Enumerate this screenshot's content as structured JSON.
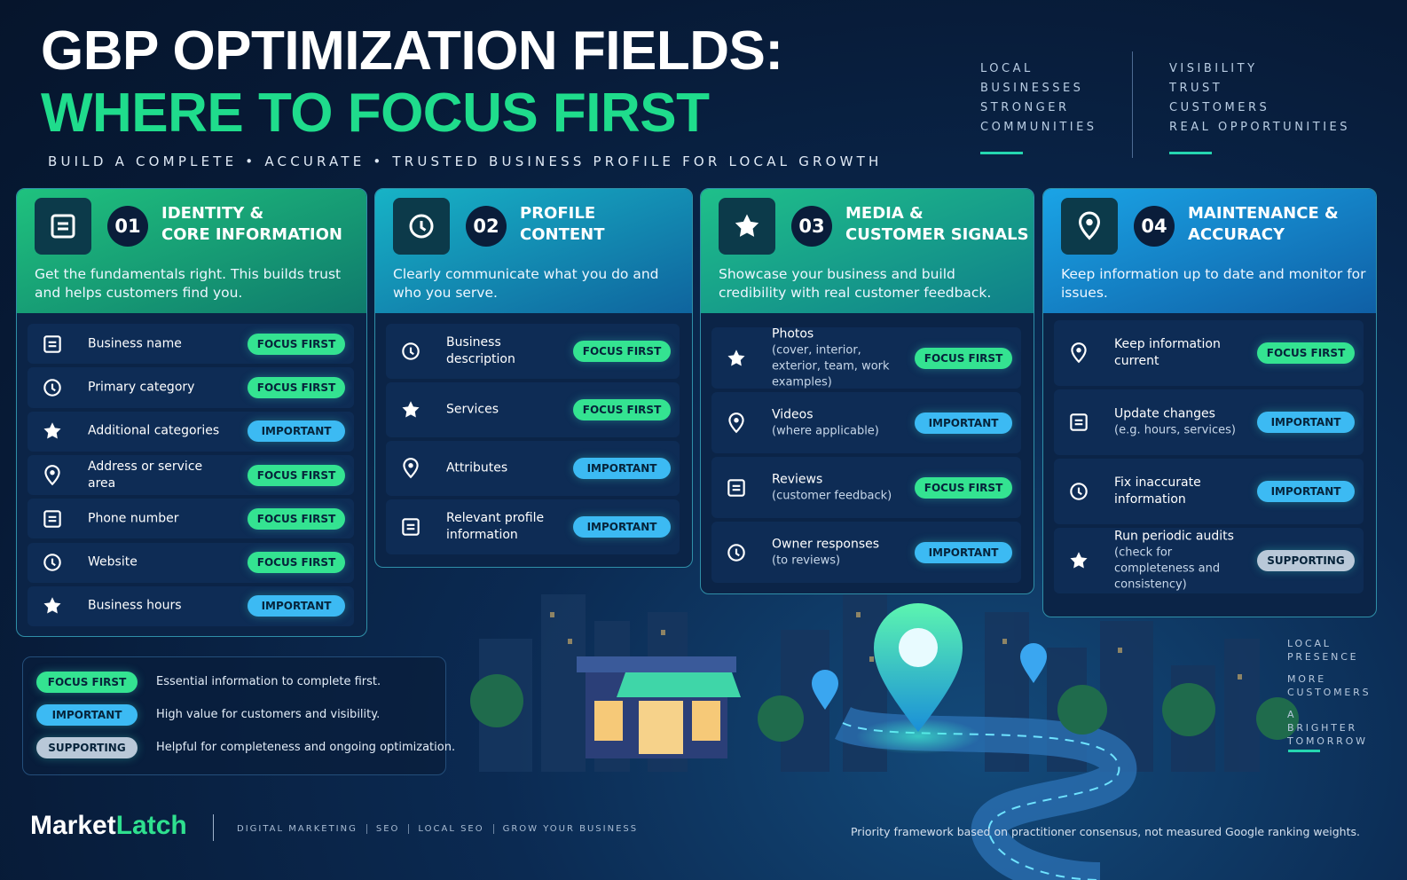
{
  "header": {
    "title_lines": [
      "GBP OPTIMIZATION FIELDS:",
      "WHERE TO FOCUS FIRST"
    ],
    "subtitle": "BUILD A COMPLETE • ACCURATE • TRUSTED BUSINESS PROFILE FOR LOCAL GROWTH",
    "tagline_columns": [
      [
        "LOCAL",
        "BUSINESSES",
        "STRONGER",
        "COMMUNITIES"
      ],
      [
        "VISIBILITY",
        "TRUST",
        "CUSTOMERS",
        "REAL OPPORTUNITIES"
      ]
    ]
  },
  "sections": [
    {
      "number": "01",
      "title_lines": [
        "IDENTITY &",
        "CORE INFORMATION"
      ],
      "description": "Get the fundamentals right. This builds trust and helps customers find you.",
      "items": [
        {
          "label": "Business name",
          "tag": "FOCUS FIRST",
          "tag_color": "#34e391"
        },
        {
          "label": "Primary category",
          "tag": "FOCUS FIRST",
          "tag_color": "#34e391"
        },
        {
          "label": "Additional categories",
          "tag": "IMPORTANT",
          "tag_color": "#3cbaf3"
        },
        {
          "label": "Address or service area",
          "tag": "FOCUS FIRST",
          "tag_color": "#34e391"
        },
        {
          "label": "Phone number",
          "tag": "FOCUS FIRST",
          "tag_color": "#34e391"
        },
        {
          "label": "Website",
          "tag": "FOCUS FIRST",
          "tag_color": "#34e391"
        },
        {
          "label": "Business hours",
          "tag": "IMPORTANT",
          "tag_color": "#3cbaf3"
        }
      ]
    },
    {
      "number": "02",
      "title_lines": [
        "PROFILE",
        "CONTENT"
      ],
      "description": "Clearly communicate what you do and who you serve.",
      "items": [
        {
          "label": "Business description",
          "tag": "FOCUS FIRST",
          "tag_color": "#34e391"
        },
        {
          "label": "Services",
          "tag": "FOCUS FIRST",
          "tag_color": "#34e391"
        },
        {
          "label": "Attributes",
          "tag": "IMPORTANT",
          "tag_color": "#3cbaf3"
        },
        {
          "label": "Relevant profile information",
          "tag": "IMPORTANT",
          "tag_color": "#3cbaf3"
        }
      ]
    },
    {
      "number": "03",
      "title_lines": [
        "MEDIA &",
        "CUSTOMER SIGNALS"
      ],
      "description": "Showcase your business and build credibility with real customer feedback.",
      "items": [
        {
          "label": "Photos",
          "detail": "(cover, interior, exterior, team, work examples)",
          "tag": "FOCUS FIRST",
          "tag_color": "#34e391"
        },
        {
          "label": "Videos",
          "detail": "(where applicable)",
          "tag": "IMPORTANT",
          "tag_color": "#3cbaf3"
        },
        {
          "label": "Reviews",
          "detail": "(customer feedback)",
          "tag": "FOCUS FIRST",
          "tag_color": "#34e391"
        },
        {
          "label": "Owner responses",
          "detail": "(to reviews)",
          "tag": "IMPORTANT",
          "tag_color": "#3cbaf3"
        }
      ]
    },
    {
      "number": "04",
      "title_lines": [
        "MAINTENANCE &",
        "ACCURACY"
      ],
      "description": "Keep information up to date and monitor for issues.",
      "items": [
        {
          "label": "Keep information current",
          "tag": "FOCUS FIRST",
          "tag_color": "#34e391"
        },
        {
          "label": "Update changes",
          "detail": "(e.g. hours, services)",
          "tag": "IMPORTANT",
          "tag_color": "#3cbaf3"
        },
        {
          "label": "Fix inaccurate information",
          "tag": "IMPORTANT",
          "tag_color": "#3cbaf3"
        },
        {
          "label": "Run periodic audits",
          "detail": "(check for completeness and consistency)",
          "tag": "SUPPORTING",
          "tag_color": "#b9c8d8"
        }
      ]
    }
  ],
  "legend": [
    {
      "tag": "FOCUS FIRST",
      "tag_color": "#34e391",
      "text": "Essential information to complete first."
    },
    {
      "tag": "IMPORTANT",
      "tag_color": "#3cbaf3",
      "text": "High value for customers and visibility."
    },
    {
      "tag": "SUPPORTING",
      "tag_color": "#b9c8d8",
      "text": "Helpful for completeness and ongoing optimization."
    }
  ],
  "side_tagline": [
    "LOCAL PRESENCE",
    "MORE CUSTOMERS",
    "A BRIGHTER TOMORROW"
  ],
  "footer": {
    "brand": [
      "Market",
      "Latch"
    ],
    "links": [
      "DIGITAL MARKETING",
      "SEO",
      "LOCAL SEO",
      "GROW YOUR BUSINESS"
    ],
    "note": "Priority framework based on practitioner consensus, not measured Google ranking weights."
  }
}
